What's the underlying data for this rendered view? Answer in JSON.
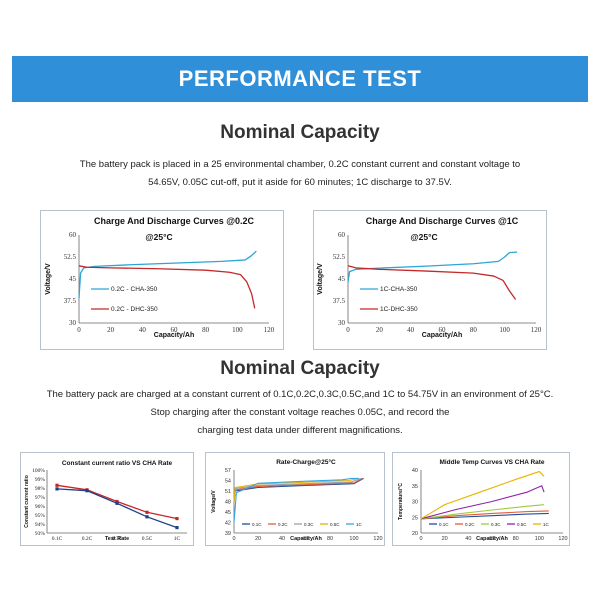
{
  "banner": {
    "title": "PERFORMANCE TEST"
  },
  "section1": {
    "title": "Nominal Capacity",
    "desc": [
      "The battery pack is placed in a 25 environmental chamber, 0.2C constant current and constant voltage to",
      "54.65V, 0.05C cut-off, put it aside for 60 minutes; 1C discharge to 37.5V."
    ]
  },
  "section2": {
    "title": "Nominal Capacity",
    "desc": [
      "The battery pack are charged at a constant current of 0.1C,0.2C,0.3C,0.5C,and 1C to 54.75V in an environment of 25°C.",
      "Stop charging after the constant voltage reaches 0.05C, and record the",
      "charging test data under different magnifications."
    ]
  },
  "chart_data": [
    {
      "type": "line",
      "title": "Charge And Discharge Curves @0.2C",
      "subtitle": "@25°C",
      "xlabel": "Capacity/Ah",
      "ylabel": "Voltage/V",
      "xlim": [
        0,
        120
      ],
      "ylim": [
        30,
        60
      ],
      "xticks": [
        0,
        20,
        40,
        60,
        80,
        100,
        120
      ],
      "yticks": [
        30,
        37.5,
        45,
        52.5,
        60
      ],
      "legend": "inside-left",
      "series": [
        {
          "name": "0.2C - CHA-350",
          "color": "#2ba6d6",
          "points": [
            [
              0,
              38.5
            ],
            [
              1,
              47
            ],
            [
              3,
              48.8
            ],
            [
              10,
              49.3
            ],
            [
              30,
              49.8
            ],
            [
              60,
              50.4
            ],
            [
              90,
              51
            ],
            [
              105,
              51.5
            ],
            [
              109,
              53
            ],
            [
              112,
              54.5
            ]
          ]
        },
        {
          "name": "0.2C - DHC-350",
          "color": "#c62828",
          "points": [
            [
              0,
              49.5
            ],
            [
              5,
              49
            ],
            [
              20,
              48.8
            ],
            [
              50,
              48.5
            ],
            [
              80,
              48
            ],
            [
              95,
              47.3
            ],
            [
              102,
              46.5
            ],
            [
              106,
              44
            ],
            [
              109,
              40
            ],
            [
              111,
              35
            ]
          ]
        }
      ]
    },
    {
      "type": "line",
      "title": "Charge And Discharge Curves @1C",
      "subtitle": "@25°C",
      "xlabel": "Capacity/Ah",
      "ylabel": "Voltage/V",
      "xlim": [
        0,
        120
      ],
      "ylim": [
        30,
        60
      ],
      "xticks": [
        0,
        20,
        40,
        60,
        80,
        100,
        120
      ],
      "yticks": [
        30,
        37.5,
        45,
        52.5,
        60
      ],
      "legend": "inside-left",
      "series": [
        {
          "name": "1C-CHA-350",
          "color": "#2ba6d6",
          "points": [
            [
              0,
              44
            ],
            [
              1,
              47.5
            ],
            [
              5,
              48.3
            ],
            [
              20,
              48.7
            ],
            [
              50,
              49.4
            ],
            [
              80,
              50.2
            ],
            [
              96,
              51
            ],
            [
              100,
              52.5
            ],
            [
              103,
              54
            ],
            [
              108,
              54.2
            ]
          ]
        },
        {
          "name": "1C-DHC-350",
          "color": "#c62828",
          "points": [
            [
              0,
              49.5
            ],
            [
              5,
              48.8
            ],
            [
              20,
              48.3
            ],
            [
              50,
              47.7
            ],
            [
              80,
              47
            ],
            [
              93,
              46
            ],
            [
              99,
              44.5
            ],
            [
              103,
              41
            ],
            [
              107,
              38
            ]
          ]
        }
      ]
    },
    {
      "type": "line",
      "title": "Constant current  ratio VS CHA Rate",
      "xlabel": "Test Rate",
      "ylabel": "Constant current ratio",
      "categories": [
        "0.1C",
        "0.2C",
        "0.3C",
        "0.5C",
        "1C"
      ],
      "ylim": [
        93,
        100
      ],
      "yticks": [
        "93%",
        "94%",
        "95%",
        "96%",
        "97%",
        "98%",
        "99%",
        "100%"
      ],
      "series": [
        {
          "color": "#c62828",
          "values": [
            98.3,
            97.8,
            96.5,
            95.3,
            94.6
          ]
        },
        {
          "color": "#1e3f8c",
          "values": [
            97.9,
            97.7,
            96.3,
            94.8,
            93.6
          ]
        }
      ]
    },
    {
      "type": "line",
      "title": "Rate-Charge@25°C",
      "xlabel": "Capacity/Ah",
      "ylabel": "Voltage/V",
      "xlim": [
        0,
        120
      ],
      "ylim": [
        39,
        57
      ],
      "xticks": [
        0,
        20,
        40,
        60,
        80,
        100,
        120
      ],
      "yticks": [
        39,
        42,
        45,
        48,
        51,
        54,
        57
      ],
      "legend": "bottom-inside",
      "series": [
        {
          "name": "0.1C",
          "color": "#1f4e9c",
          "points": [
            [
              0,
              48
            ],
            [
              1,
              51
            ],
            [
              20,
              52
            ],
            [
              60,
              52.6
            ],
            [
              100,
              53.1
            ],
            [
              108,
              54.6
            ]
          ]
        },
        {
          "name": "0.2C",
          "color": "#e65a3a",
          "points": [
            [
              0,
              48
            ],
            [
              1,
              51.3
            ],
            [
              20,
              52.3
            ],
            [
              60,
              52.8
            ],
            [
              100,
              53.3
            ],
            [
              107,
              54.6
            ]
          ]
        },
        {
          "name": "0.3C",
          "color": "#9aa0a6",
          "points": [
            [
              0,
              48
            ],
            [
              1,
              51.7
            ],
            [
              20,
              52.6
            ],
            [
              60,
              53.1
            ],
            [
              98,
              53.6
            ],
            [
              106,
              54.6
            ]
          ]
        },
        {
          "name": "0.5C",
          "color": "#e8b400",
          "points": [
            [
              0,
              48
            ],
            [
              1,
              52
            ],
            [
              20,
              53
            ],
            [
              60,
              53.5
            ],
            [
              96,
              54
            ],
            [
              104,
              54.6
            ]
          ]
        },
        {
          "name": "1C",
          "color": "#37a6e0",
          "points": [
            [
              0,
              42
            ],
            [
              2,
              50.5
            ],
            [
              20,
              53.2
            ],
            [
              60,
              53.8
            ],
            [
              90,
              54.2
            ],
            [
              98,
              54.6
            ],
            [
              104,
              54.6
            ]
          ]
        }
      ]
    },
    {
      "type": "line",
      "title": "Middle Temp Curves VS CHA Rate",
      "xlabel": "Capacity/Ah",
      "ylabel": "Temperature/°C",
      "xlim": [
        0,
        120
      ],
      "ylim": [
        20,
        40
      ],
      "xticks": [
        0,
        20,
        40,
        60,
        80,
        100,
        120
      ],
      "yticks": [
        20,
        25,
        30,
        35,
        40
      ],
      "legend": "bottom-inside",
      "series": [
        {
          "name": "0.1C",
          "color": "#1f4e9c",
          "points": [
            [
              0,
              24.5
            ],
            [
              30,
              25
            ],
            [
              60,
              25.5
            ],
            [
              90,
              26
            ],
            [
              108,
              26.2
            ]
          ]
        },
        {
          "name": "0.2C",
          "color": "#e65a3a",
          "points": [
            [
              0,
              24.5
            ],
            [
              30,
              25.5
            ],
            [
              60,
              26.2
            ],
            [
              90,
              26.8
            ],
            [
              108,
              27
            ]
          ]
        },
        {
          "name": "0.3C",
          "color": "#9ccc3c",
          "points": [
            [
              0,
              24.5
            ],
            [
              30,
              26
            ],
            [
              60,
              27.3
            ],
            [
              90,
              28.5
            ],
            [
              104,
              29
            ]
          ]
        },
        {
          "name": "0.5C",
          "color": "#8e24aa",
          "points": [
            [
              0,
              24.5
            ],
            [
              30,
              27.5
            ],
            [
              60,
              30
            ],
            [
              90,
              33
            ],
            [
              102,
              35
            ],
            [
              104,
              33
            ]
          ]
        },
        {
          "name": "1C",
          "color": "#e8b400",
          "points": [
            [
              0,
              24.5
            ],
            [
              20,
              29
            ],
            [
              50,
              33
            ],
            [
              80,
              37
            ],
            [
              100,
              39.5
            ],
            [
              104,
              38
            ]
          ]
        }
      ]
    }
  ]
}
